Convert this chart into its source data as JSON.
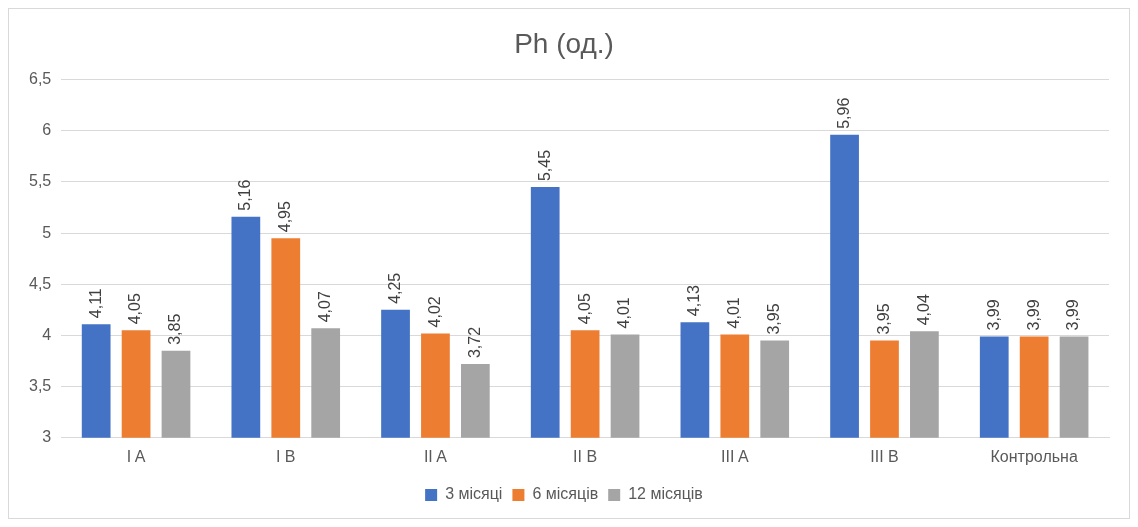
{
  "chart_data": {
    "type": "bar",
    "title": "Ph (од.)",
    "categories": [
      "I A",
      "I B",
      "II A",
      "II B",
      "III A",
      "III B",
      "Контрольна"
    ],
    "series": [
      {
        "name": "3 місяці",
        "color": "#4472c4",
        "values": [
          4.11,
          5.16,
          4.25,
          5.45,
          4.13,
          5.96,
          3.99
        ],
        "value_labels": [
          "4,11",
          "5,16",
          "4,25",
          "5,45",
          "4,13",
          "5,96",
          "3,99"
        ]
      },
      {
        "name": "6 місяців",
        "color": "#ed7d31",
        "values": [
          4.05,
          4.95,
          4.02,
          4.05,
          4.01,
          3.95,
          3.99
        ],
        "value_labels": [
          "4,05",
          "4,95",
          "4,02",
          "4,05",
          "4,01",
          "3,95",
          "3,99"
        ]
      },
      {
        "name": "12 місяців",
        "color": "#a5a5a5",
        "values": [
          3.85,
          4.07,
          3.72,
          4.01,
          3.95,
          4.04,
          3.99
        ],
        "value_labels": [
          "3,85",
          "4,07",
          "3,72",
          "4,01",
          "3,95",
          "4,04",
          "3,99"
        ]
      }
    ],
    "ylim": [
      3,
      6.5
    ],
    "yticks": [
      3,
      {
        "value": 3.5,
        "label": "3,5"
      },
      4,
      {
        "value": 4.5,
        "label": "4,5"
      },
      5,
      {
        "value": 5.5,
        "label": "5,5"
      },
      6,
      {
        "value": 6.5,
        "label": "6,5"
      }
    ],
    "grid": "y",
    "legend": "bottom"
  }
}
